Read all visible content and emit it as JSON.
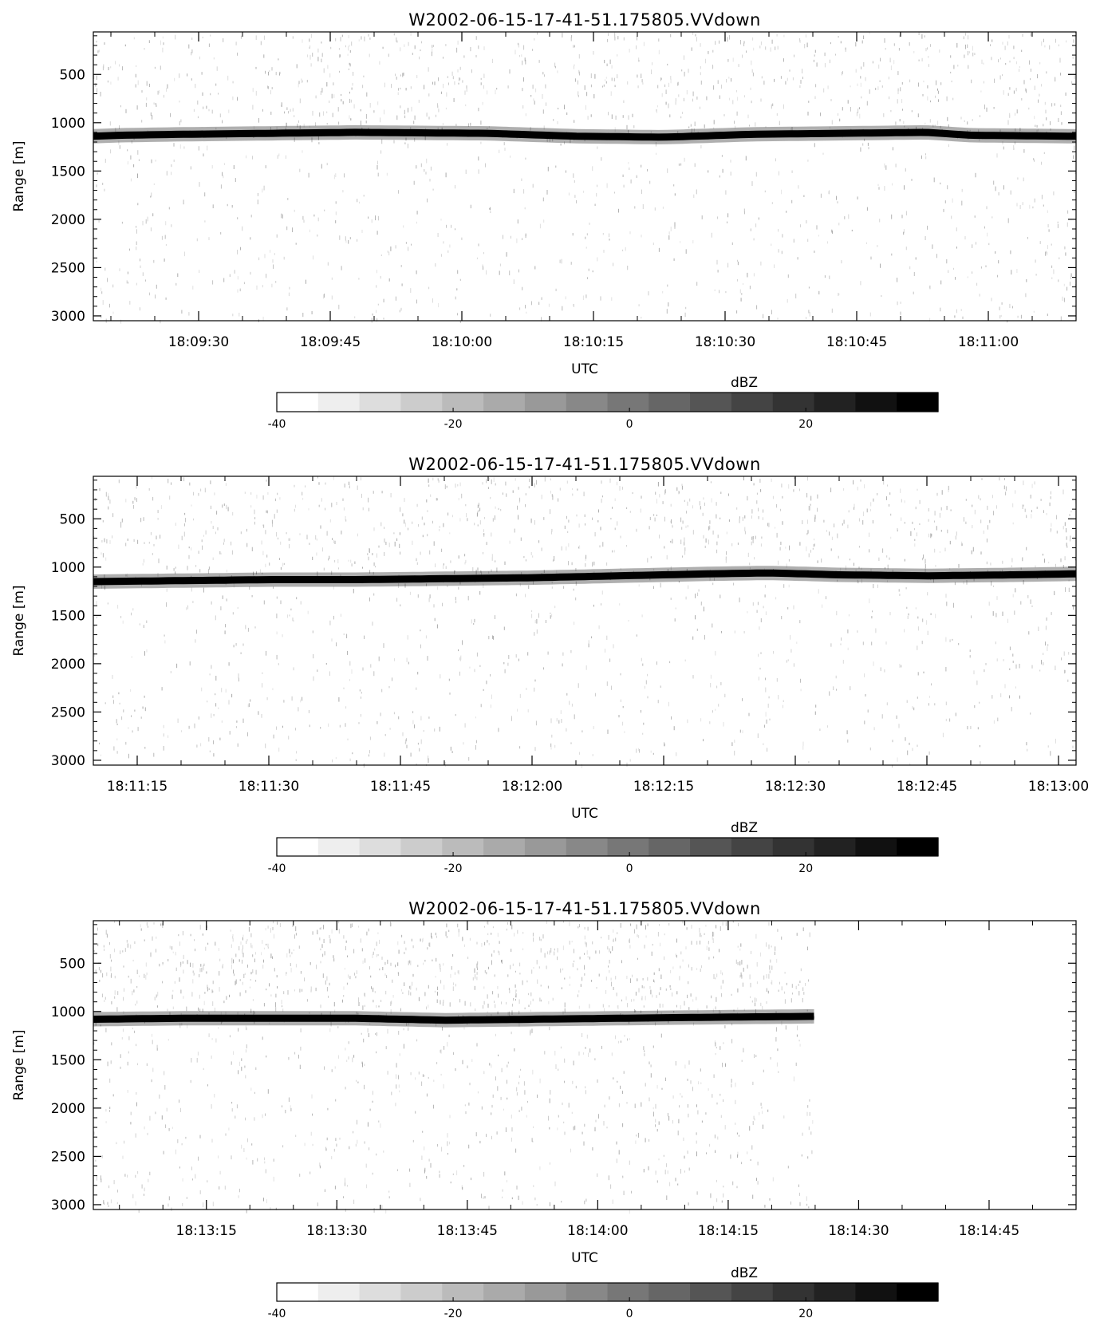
{
  "chart_data": [
    {
      "type": "heatmap",
      "title": "W2002-06-15-17-41-51.175805.VVdown",
      "xlabel": "UTC",
      "ylabel": "Range [m]",
      "x_ticks": [
        "18:09:30",
        "18:09:45",
        "18:10:00",
        "18:10:15",
        "18:10:30",
        "18:10:45",
        "18:11:00"
      ],
      "x_range": [
        "18:09:18",
        "18:11:10"
      ],
      "y_ticks": [
        500,
        1000,
        1500,
        2000,
        2500,
        3000
      ],
      "ylim": [
        3050,
        60
      ],
      "y_reversed": true,
      "layer": {
        "name": "surface return",
        "range_m": [
          [
            0,
            1140
          ],
          [
            3,
            1130
          ],
          [
            10,
            1120
          ],
          [
            20,
            1110
          ],
          [
            30,
            1100
          ],
          [
            45,
            1110
          ],
          [
            55,
            1140
          ],
          [
            65,
            1150
          ],
          [
            75,
            1120
          ],
          [
            85,
            1110
          ],
          [
            95,
            1100
          ],
          [
            100,
            1130
          ],
          [
            112,
            1140
          ]
        ]
      },
      "colorbar": {
        "label": "dBZ",
        "ticks": [
          -40,
          -20,
          0,
          20
        ],
        "range": [
          -40,
          35
        ]
      }
    },
    {
      "type": "heatmap",
      "title": "W2002-06-15-17-41-51.175805.VVdown",
      "xlabel": "UTC",
      "ylabel": "Range [m]",
      "x_ticks": [
        "18:11:15",
        "18:11:30",
        "18:11:45",
        "18:12:00",
        "18:12:15",
        "18:12:30",
        "18:12:45",
        "18:13:00"
      ],
      "x_range": [
        "18:11:10",
        "18:13:02"
      ],
      "y_ticks": [
        500,
        1000,
        1500,
        2000,
        2500,
        3000
      ],
      "ylim": [
        3050,
        60
      ],
      "y_reversed": true,
      "layer": {
        "name": "surface return",
        "range_m": [
          [
            0,
            1150
          ],
          [
            10,
            1140
          ],
          [
            20,
            1130
          ],
          [
            30,
            1130
          ],
          [
            40,
            1120
          ],
          [
            50,
            1110
          ],
          [
            60,
            1090
          ],
          [
            70,
            1070
          ],
          [
            77,
            1060
          ],
          [
            85,
            1080
          ],
          [
            95,
            1090
          ],
          [
            105,
            1080
          ],
          [
            112,
            1070
          ]
        ]
      },
      "colorbar": {
        "label": "dBZ",
        "ticks": [
          -40,
          -20,
          0,
          20
        ],
        "range": [
          -40,
          35
        ]
      }
    },
    {
      "type": "heatmap",
      "title": "W2002-06-15-17-41-51.175805.VVdown",
      "xlabel": "UTC",
      "ylabel": "Range [m]",
      "x_ticks": [
        "18:13:15",
        "18:13:30",
        "18:13:45",
        "18:14:00",
        "18:14:15",
        "18:14:30",
        "18:14:45"
      ],
      "x_range": [
        "18:13:02",
        "18:14:55"
      ],
      "y_ticks": [
        500,
        1000,
        1500,
        2000,
        2500,
        3000
      ],
      "ylim": [
        3050,
        60
      ],
      "y_reversed": true,
      "data_end": "18:14:25",
      "layer": {
        "name": "surface return",
        "range_m": [
          [
            0,
            1080
          ],
          [
            10,
            1070
          ],
          [
            20,
            1070
          ],
          [
            30,
            1070
          ],
          [
            40,
            1090
          ],
          [
            50,
            1080
          ],
          [
            60,
            1070
          ],
          [
            70,
            1060
          ],
          [
            83,
            1050
          ]
        ]
      },
      "colorbar": {
        "label": "dBZ",
        "ticks": [
          -40,
          -20,
          0,
          20
        ],
        "range": [
          -40,
          35
        ]
      }
    }
  ]
}
